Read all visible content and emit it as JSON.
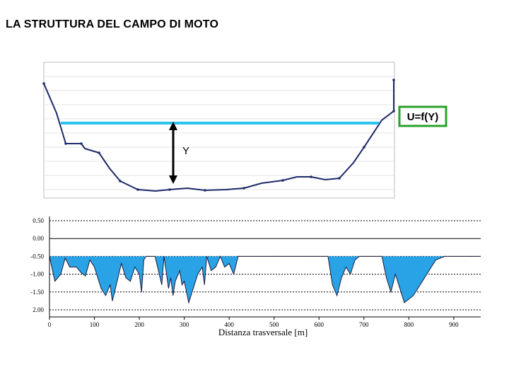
{
  "slide": {
    "title": "LA STRUTTURA DEL CAMPO DI MOTO"
  },
  "upper_diagram": {
    "depth_label": "Y",
    "equation_label": "U=f(Y)",
    "colors": {
      "water_surface": "#29c4ee",
      "equation_border": "#2aa02a",
      "profile": "#1e2a6a"
    }
  },
  "chart_data": {
    "type": "area",
    "xlabel": "Distanza trasversale [m]",
    "xlim": [
      0,
      960
    ],
    "ylim": [
      2.0,
      -0.5
    ],
    "y_reversed": true,
    "x_ticks": [
      "0",
      "100",
      "200",
      "300",
      "400",
      "500",
      "600",
      "700",
      "800",
      "900"
    ],
    "y_ticks": [
      "0.50",
      "0.00",
      "-0.50",
      "-1.00",
      "-1.50",
      "2.00"
    ],
    "water_level": 0.5,
    "grid": true,
    "colors": {
      "fill": "#2aa3e6",
      "bed_line": "#1a1a3a"
    },
    "series": [
      {
        "values_x": [
          0,
          12,
          25,
          35,
          45,
          60,
          70,
          80,
          90,
          100,
          115,
          125,
          135,
          140,
          145,
          160,
          170,
          180,
          190,
          200,
          205,
          210,
          215,
          225,
          235,
          250,
          255,
          265,
          270,
          275,
          280,
          290,
          295,
          300,
          310,
          320,
          330,
          340,
          345,
          350,
          360,
          370,
          380,
          390,
          400,
          410,
          420,
          430,
          440,
          450,
          460,
          475,
          490,
          500,
          510,
          520,
          530,
          540,
          550,
          560,
          570,
          580,
          590,
          600,
          610,
          620,
          630,
          640,
          650,
          660,
          670,
          680,
          690,
          700,
          710,
          720,
          730,
          740,
          750,
          760,
          770,
          790,
          800,
          810,
          820,
          830,
          840,
          850,
          860,
          880,
          900,
          920,
          940,
          950,
          960
        ],
        "values_y": [
          0.5,
          1.2,
          1.0,
          0.55,
          0.8,
          0.8,
          0.95,
          1.05,
          0.6,
          0.8,
          1.4,
          1.6,
          1.3,
          1.75,
          1.5,
          0.7,
          1.1,
          1.2,
          0.8,
          1.0,
          1.5,
          0.6,
          0.5,
          0.5,
          0.5,
          1.3,
          0.5,
          1.4,
          1.1,
          1.6,
          1.2,
          0.9,
          1.3,
          1.2,
          1.8,
          1.4,
          1.0,
          0.8,
          1.3,
          0.5,
          0.9,
          0.8,
          0.5,
          0.8,
          0.7,
          1.0,
          0.5,
          0.5,
          0.5,
          0.5,
          0.5,
          0.5,
          0.5,
          0.5,
          0.5,
          0.5,
          0.5,
          0.5,
          0.5,
          0.5,
          0.5,
          0.5,
          0.5,
          0.5,
          0.5,
          0.5,
          1.3,
          1.6,
          1.1,
          0.8,
          1.0,
          0.6,
          0.5,
          0.5,
          0.5,
          0.5,
          0.5,
          0.5,
          1.1,
          1.5,
          1.0,
          1.8,
          1.7,
          1.6,
          1.4,
          1.2,
          1.0,
          0.8,
          0.6,
          0.5,
          0.5,
          0.5,
          0.5,
          0.5,
          0.5
        ]
      }
    ]
  }
}
